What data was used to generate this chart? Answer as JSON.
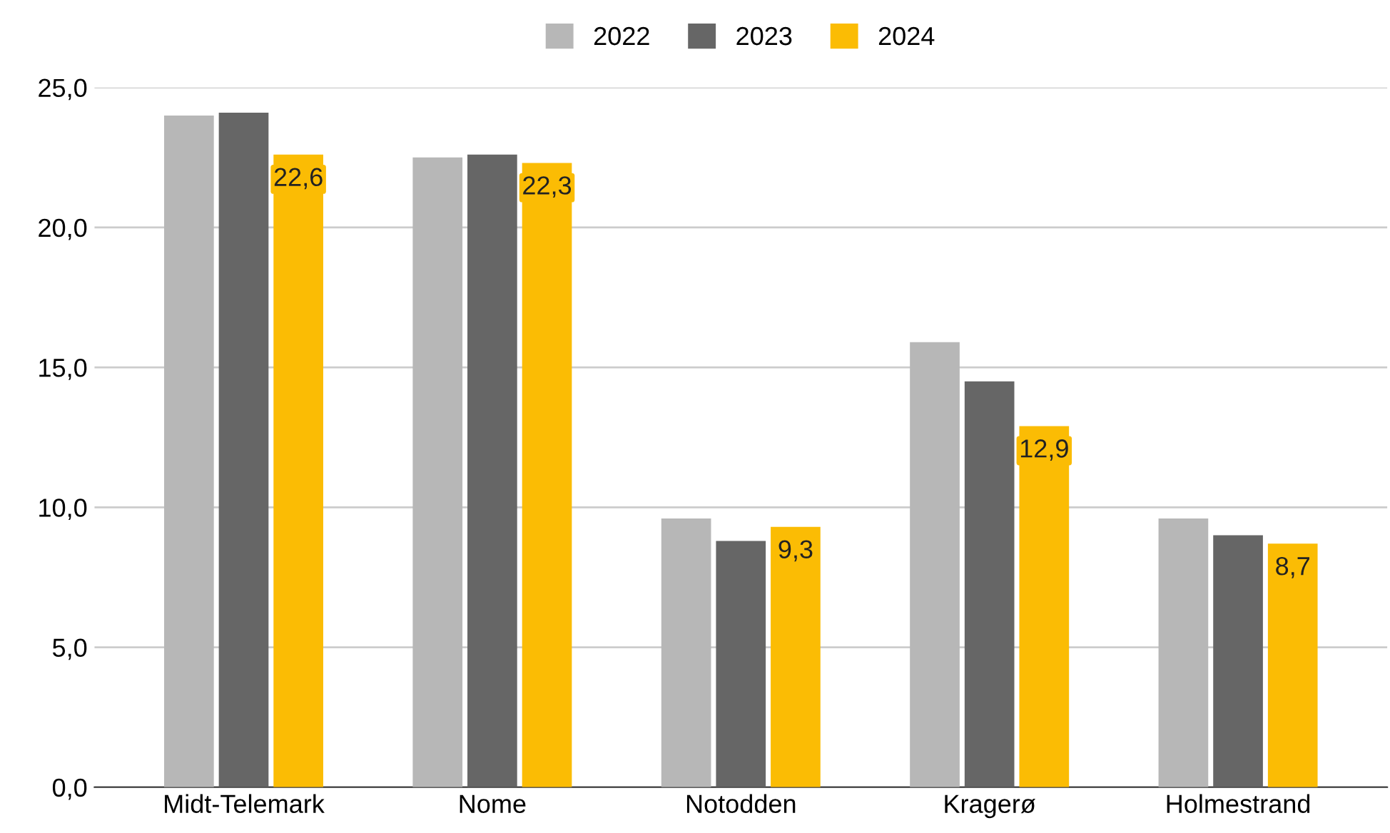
{
  "chart_data": {
    "type": "bar",
    "categories": [
      "Midt-Telemark",
      "Nome",
      "Notodden",
      "Kragerø",
      "Holmestrand"
    ],
    "series": [
      {
        "name": "2022",
        "color": "#b7b7b7",
        "values": [
          24.0,
          22.5,
          9.6,
          15.9,
          9.6
        ]
      },
      {
        "name": "2023",
        "color": "#666666",
        "values": [
          24.1,
          22.6,
          8.8,
          14.5,
          9.0
        ]
      },
      {
        "name": "2024",
        "color": "#fbbc04",
        "values": [
          22.6,
          22.3,
          9.3,
          12.9,
          8.7
        ],
        "value_labels": [
          "22,6",
          "22,3",
          "9,3",
          "12,9",
          "8,7"
        ]
      }
    ],
    "ylim": [
      0,
      25
    ],
    "yticks": [
      {
        "value": 0,
        "label": "0,0"
      },
      {
        "value": 5,
        "label": "5,0"
      },
      {
        "value": 10,
        "label": "10,0"
      },
      {
        "value": 15,
        "label": "15,0"
      },
      {
        "value": 20,
        "label": "20,0"
      },
      {
        "value": 25,
        "label": "25,0"
      }
    ],
    "grid": "y",
    "legend": "top"
  }
}
